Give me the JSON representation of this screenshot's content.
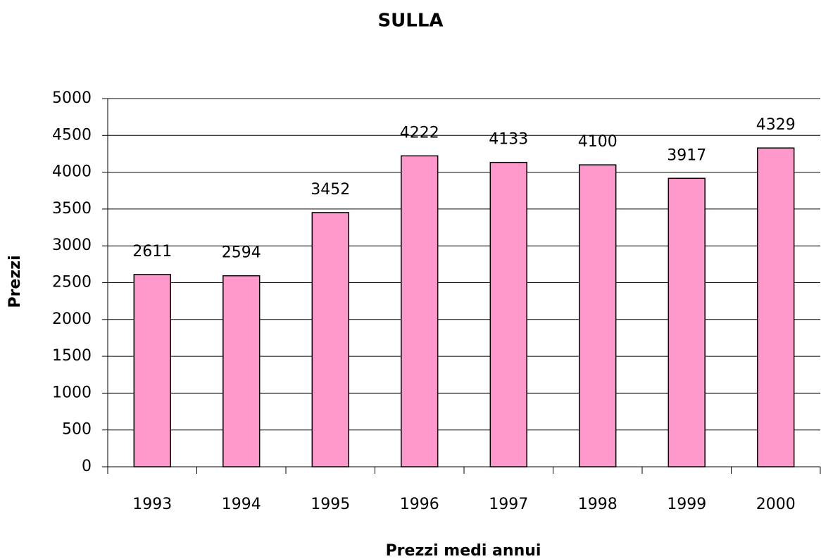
{
  "chart_data": {
    "type": "bar",
    "title": "SULLA",
    "x_label": "Prezzi medi annui",
    "y_label": "Prezzi",
    "categories": [
      "1993",
      "1994",
      "1995",
      "1996",
      "1997",
      "1998",
      "1999",
      "2000"
    ],
    "values": [
      2611,
      2594,
      3452,
      4222,
      4133,
      4100,
      3917,
      4329
    ],
    "color": "#ff99cc",
    "ylim": [
      0,
      5000
    ],
    "yticks": [
      0,
      500,
      1000,
      1500,
      2000,
      2500,
      3000,
      3500,
      4000,
      4500,
      5000
    ],
    "grid": true
  }
}
